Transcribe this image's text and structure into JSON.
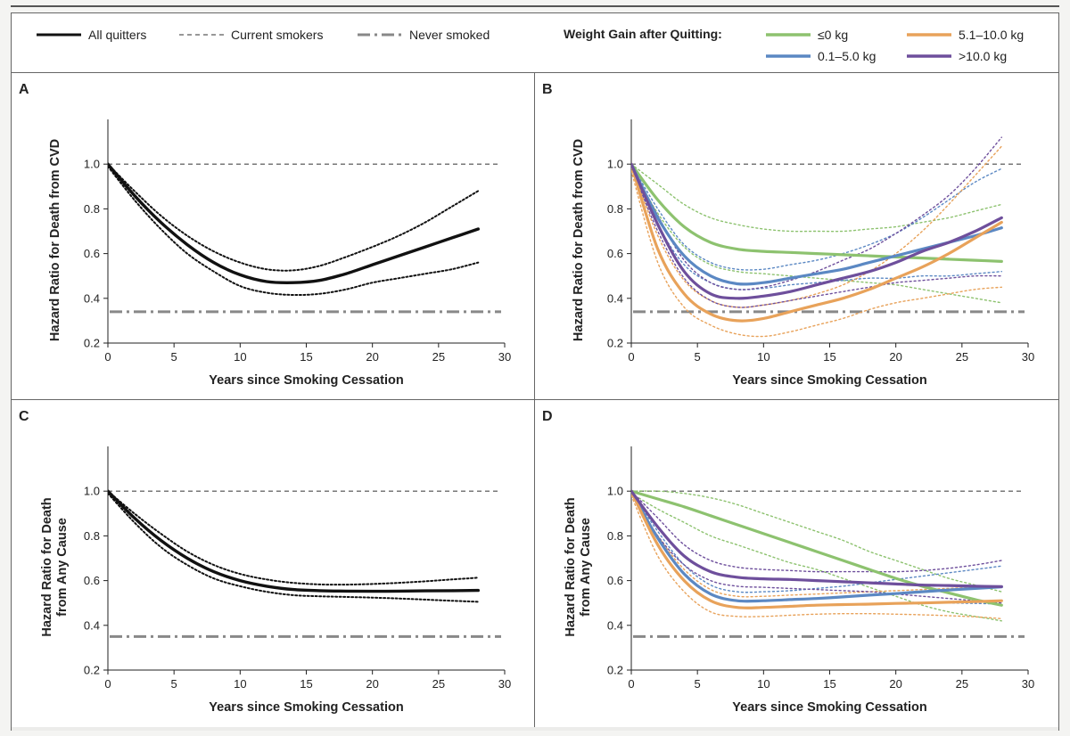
{
  "legend": {
    "all_quitters": "All quitters",
    "current_smokers": "Current smokers",
    "never_smoked": "Never smoked",
    "weight_title": "Weight Gain after Quitting:",
    "groups": [
      {
        "label": "≤0 kg",
        "color": "#8dc26f"
      },
      {
        "label": "0.1–5.0 kg",
        "color": "#5b88c3"
      },
      {
        "label": "5.1–10.0 kg",
        "color": "#e8a25a"
      },
      {
        "label": ">10.0 kg",
        "color": "#6e4f9c"
      }
    ],
    "black_color": "#111111",
    "reference_color": "#777777"
  },
  "chart_data": [
    {
      "panel": "A",
      "type": "line",
      "xlabel": "Years since Smoking Cessation",
      "ylabel": [
        "Hazard Ratio for Death from CVD"
      ],
      "xlim": [
        0,
        30
      ],
      "ylim": [
        0.2,
        1.2
      ],
      "xticks": [
        0,
        5,
        10,
        15,
        20,
        25,
        30
      ],
      "yticks": [
        0.2,
        0.4,
        0.6,
        0.8,
        1.0
      ],
      "current_smokers": 1.0,
      "never_smoked": 0.34,
      "series": [
        {
          "name": "All quitters",
          "color": "#111111",
          "x": [
            0,
            2,
            4,
            6,
            8,
            10,
            12,
            14,
            16,
            18,
            20,
            22,
            24,
            26,
            28
          ],
          "y": [
            1.0,
            0.86,
            0.74,
            0.64,
            0.56,
            0.505,
            0.475,
            0.47,
            0.48,
            0.51,
            0.55,
            0.59,
            0.63,
            0.67,
            0.71
          ],
          "lower": [
            0.99,
            0.84,
            0.71,
            0.6,
            0.52,
            0.455,
            0.425,
            0.415,
            0.42,
            0.44,
            0.47,
            0.49,
            0.51,
            0.53,
            0.56
          ],
          "upper": [
            1.0,
            0.88,
            0.77,
            0.68,
            0.61,
            0.56,
            0.53,
            0.525,
            0.545,
            0.585,
            0.63,
            0.68,
            0.74,
            0.81,
            0.88
          ]
        }
      ]
    },
    {
      "panel": "B",
      "type": "line",
      "xlabel": "Years since Smoking Cessation",
      "ylabel": [
        "Hazard Ratio for Death from CVD"
      ],
      "xlim": [
        0,
        30
      ],
      "ylim": [
        0.2,
        1.2
      ],
      "xticks": [
        0,
        5,
        10,
        15,
        20,
        25,
        30
      ],
      "yticks": [
        0.2,
        0.4,
        0.6,
        0.8,
        1.0
      ],
      "current_smokers": 1.0,
      "never_smoked": 0.34,
      "series": [
        {
          "name": "≤0 kg",
          "color": "#8dc26f",
          "x": [
            0,
            2,
            4,
            6,
            8,
            10,
            12,
            14,
            16,
            18,
            20,
            22,
            24,
            26,
            28
          ],
          "y": [
            1.0,
            0.84,
            0.72,
            0.65,
            0.62,
            0.61,
            0.605,
            0.6,
            0.595,
            0.59,
            0.585,
            0.58,
            0.575,
            0.57,
            0.565
          ],
          "lower": [
            0.99,
            0.78,
            0.63,
            0.55,
            0.52,
            0.51,
            0.5,
            0.49,
            0.48,
            0.47,
            0.46,
            0.44,
            0.42,
            0.4,
            0.38
          ],
          "upper": [
            1.0,
            0.91,
            0.82,
            0.76,
            0.73,
            0.71,
            0.7,
            0.7,
            0.7,
            0.71,
            0.72,
            0.74,
            0.76,
            0.79,
            0.82
          ]
        },
        {
          "name": "0.1–5.0 kg",
          "color": "#5b88c3",
          "x": [
            0,
            2,
            4,
            6,
            8,
            10,
            12,
            14,
            16,
            18,
            20,
            22,
            24,
            26,
            28
          ],
          "y": [
            1.0,
            0.76,
            0.59,
            0.5,
            0.465,
            0.47,
            0.49,
            0.51,
            0.53,
            0.56,
            0.59,
            0.62,
            0.65,
            0.68,
            0.715
          ],
          "lower": [
            0.99,
            0.73,
            0.55,
            0.47,
            0.44,
            0.445,
            0.46,
            0.47,
            0.48,
            0.49,
            0.49,
            0.5,
            0.5,
            0.51,
            0.52
          ],
          "upper": [
            1.0,
            0.8,
            0.64,
            0.56,
            0.53,
            0.53,
            0.55,
            0.57,
            0.6,
            0.64,
            0.69,
            0.76,
            0.84,
            0.92,
            0.98
          ]
        },
        {
          "name": "5.1–10.0 kg",
          "color": "#e8a25a",
          "x": [
            0,
            2,
            4,
            6,
            8,
            10,
            12,
            14,
            16,
            18,
            20,
            22,
            24,
            26,
            28
          ],
          "y": [
            1.0,
            0.62,
            0.42,
            0.33,
            0.3,
            0.31,
            0.34,
            0.37,
            0.4,
            0.44,
            0.49,
            0.54,
            0.6,
            0.67,
            0.74
          ],
          "lower": [
            0.97,
            0.56,
            0.36,
            0.28,
            0.24,
            0.23,
            0.25,
            0.28,
            0.31,
            0.35,
            0.38,
            0.4,
            0.42,
            0.44,
            0.45
          ],
          "upper": [
            1.0,
            0.68,
            0.48,
            0.39,
            0.36,
            0.37,
            0.39,
            0.42,
            0.46,
            0.52,
            0.6,
            0.7,
            0.82,
            0.95,
            1.08
          ]
        },
        {
          "name": ">10.0 kg",
          "color": "#6e4f9c",
          "x": [
            0,
            2,
            4,
            6,
            8,
            10,
            12,
            14,
            16,
            18,
            20,
            22,
            24,
            26,
            28
          ],
          "y": [
            1.0,
            0.73,
            0.52,
            0.42,
            0.4,
            0.41,
            0.43,
            0.46,
            0.49,
            0.52,
            0.56,
            0.61,
            0.65,
            0.7,
            0.76
          ],
          "lower": [
            0.99,
            0.7,
            0.49,
            0.39,
            0.36,
            0.37,
            0.39,
            0.41,
            0.43,
            0.45,
            0.47,
            0.48,
            0.49,
            0.5,
            0.5
          ],
          "upper": [
            1.0,
            0.77,
            0.57,
            0.47,
            0.44,
            0.45,
            0.48,
            0.52,
            0.57,
            0.62,
            0.69,
            0.77,
            0.86,
            0.98,
            1.12
          ]
        }
      ]
    },
    {
      "panel": "C",
      "type": "line",
      "xlabel": "Years since Smoking Cessation",
      "ylabel": [
        "Hazard Ratio for Death",
        "from Any Cause"
      ],
      "xlim": [
        0,
        30
      ],
      "ylim": [
        0.2,
        1.2
      ],
      "xticks": [
        0,
        5,
        10,
        15,
        20,
        25,
        30
      ],
      "yticks": [
        0.2,
        0.4,
        0.6,
        0.8,
        1.0
      ],
      "current_smokers": 1.0,
      "never_smoked": 0.35,
      "series": [
        {
          "name": "All quitters",
          "color": "#111111",
          "x": [
            0,
            2,
            4,
            6,
            8,
            10,
            12,
            14,
            16,
            18,
            20,
            22,
            24,
            26,
            28
          ],
          "y": [
            1.0,
            0.88,
            0.78,
            0.7,
            0.64,
            0.6,
            0.575,
            0.56,
            0.555,
            0.553,
            0.552,
            0.553,
            0.554,
            0.555,
            0.556
          ],
          "lower": [
            0.99,
            0.86,
            0.75,
            0.67,
            0.61,
            0.575,
            0.55,
            0.535,
            0.53,
            0.527,
            0.524,
            0.52,
            0.515,
            0.51,
            0.505
          ],
          "upper": [
            1.0,
            0.9,
            0.81,
            0.73,
            0.67,
            0.63,
            0.605,
            0.59,
            0.583,
            0.582,
            0.585,
            0.59,
            0.597,
            0.605,
            0.613
          ]
        }
      ]
    },
    {
      "panel": "D",
      "type": "line",
      "xlabel": "Years since Smoking Cessation",
      "ylabel": [
        "Hazard Ratio for Death",
        "from Any Cause"
      ],
      "xlim": [
        0,
        30
      ],
      "ylim": [
        0.2,
        1.2
      ],
      "xticks": [
        0,
        5,
        10,
        15,
        20,
        25,
        30
      ],
      "yticks": [
        0.2,
        0.4,
        0.6,
        0.8,
        1.0
      ],
      "current_smokers": 1.0,
      "never_smoked": 0.35,
      "series": [
        {
          "name": "≤0 kg",
          "color": "#8dc26f",
          "x": [
            0,
            2,
            4,
            6,
            8,
            10,
            12,
            14,
            16,
            18,
            20,
            22,
            24,
            26,
            28
          ],
          "y": [
            1.0,
            0.965,
            0.93,
            0.89,
            0.85,
            0.81,
            0.77,
            0.73,
            0.69,
            0.65,
            0.61,
            0.575,
            0.545,
            0.515,
            0.49
          ],
          "lower": [
            0.99,
            0.92,
            0.86,
            0.8,
            0.76,
            0.72,
            0.68,
            0.65,
            0.61,
            0.57,
            0.53,
            0.49,
            0.46,
            0.44,
            0.42
          ],
          "upper": [
            1.0,
            1.0,
            0.99,
            0.97,
            0.94,
            0.9,
            0.86,
            0.82,
            0.78,
            0.73,
            0.69,
            0.65,
            0.61,
            0.58,
            0.55
          ]
        },
        {
          "name": "0.1–5.0 kg",
          "color": "#5b88c3",
          "x": [
            0,
            2,
            4,
            6,
            8,
            10,
            12,
            14,
            16,
            18,
            20,
            22,
            24,
            26,
            28
          ],
          "y": [
            1.0,
            0.79,
            0.63,
            0.54,
            0.51,
            0.51,
            0.515,
            0.52,
            0.527,
            0.535,
            0.542,
            0.55,
            0.558,
            0.565,
            0.572
          ],
          "lower": [
            0.99,
            0.76,
            0.6,
            0.51,
            0.48,
            0.48,
            0.485,
            0.49,
            0.493,
            0.497,
            0.5,
            0.5,
            0.5,
            0.498,
            0.495
          ],
          "upper": [
            1.0,
            0.82,
            0.67,
            0.58,
            0.55,
            0.55,
            0.555,
            0.565,
            0.575,
            0.59,
            0.605,
            0.62,
            0.635,
            0.65,
            0.665
          ]
        },
        {
          "name": "5.1–10.0 kg",
          "color": "#e8a25a",
          "x": [
            0,
            2,
            4,
            6,
            8,
            10,
            12,
            14,
            16,
            18,
            20,
            22,
            24,
            26,
            28
          ],
          "y": [
            1.0,
            0.76,
            0.6,
            0.51,
            0.48,
            0.48,
            0.485,
            0.49,
            0.493,
            0.495,
            0.498,
            0.5,
            0.503,
            0.506,
            0.51
          ],
          "lower": [
            0.98,
            0.71,
            0.55,
            0.46,
            0.44,
            0.44,
            0.445,
            0.45,
            0.452,
            0.452,
            0.45,
            0.447,
            0.443,
            0.438,
            0.43
          ],
          "upper": [
            1.0,
            0.8,
            0.65,
            0.56,
            0.53,
            0.53,
            0.535,
            0.54,
            0.545,
            0.55,
            0.555,
            0.56,
            0.565,
            0.57,
            0.575
          ]
        },
        {
          "name": ">10.0 kg",
          "color": "#6e4f9c",
          "x": [
            0,
            2,
            4,
            6,
            8,
            10,
            12,
            14,
            16,
            18,
            20,
            22,
            24,
            26,
            28
          ],
          "y": [
            1.0,
            0.84,
            0.71,
            0.64,
            0.615,
            0.608,
            0.605,
            0.6,
            0.595,
            0.59,
            0.585,
            0.58,
            0.578,
            0.575,
            0.573
          ],
          "lower": [
            0.99,
            0.8,
            0.67,
            0.6,
            0.575,
            0.57,
            0.565,
            0.56,
            0.555,
            0.55,
            0.54,
            0.53,
            0.52,
            0.51,
            0.5
          ],
          "upper": [
            1.0,
            0.88,
            0.76,
            0.69,
            0.66,
            0.65,
            0.645,
            0.64,
            0.64,
            0.64,
            0.64,
            0.645,
            0.655,
            0.67,
            0.69
          ]
        }
      ]
    }
  ]
}
